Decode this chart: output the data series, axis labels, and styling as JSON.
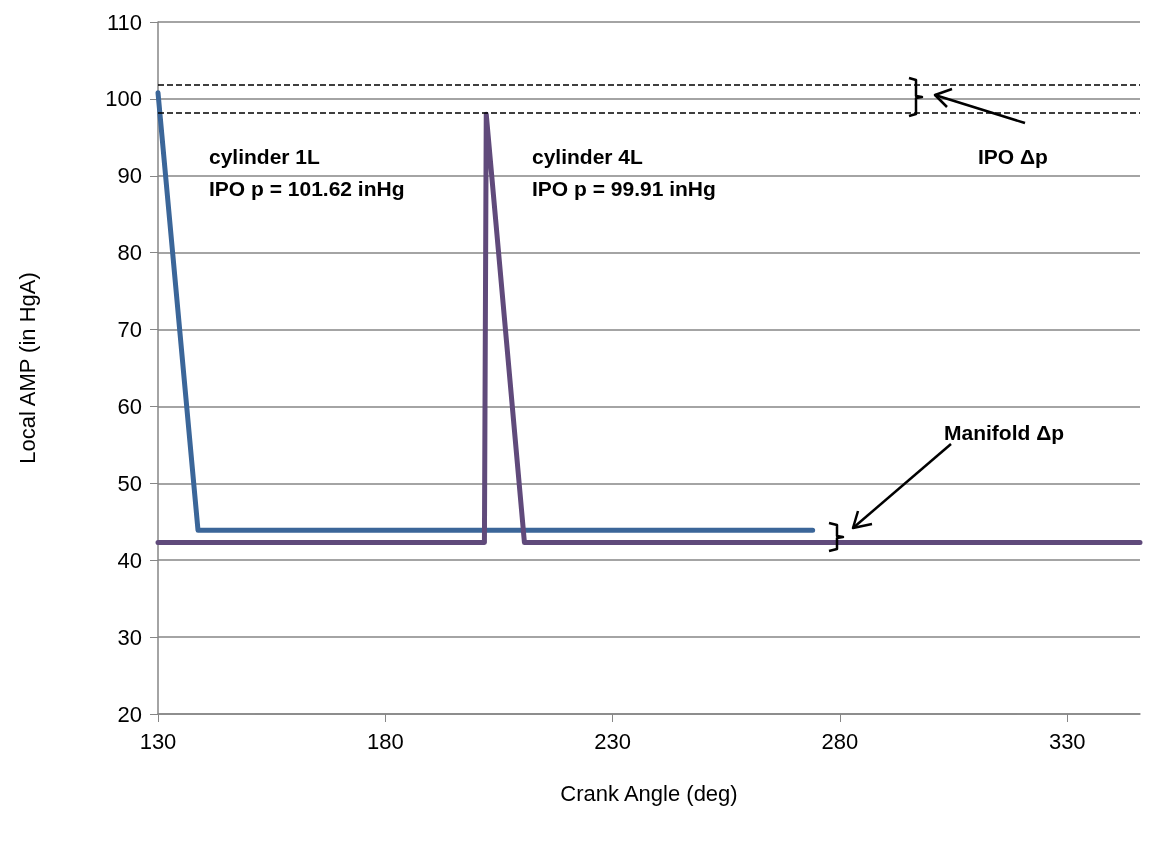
{
  "chart_data": {
    "type": "line",
    "xlabel": "Crank Angle (deg)",
    "ylabel": "Local AMP (in HgA)",
    "xlim": [
      130,
      346
    ],
    "xticks": [
      130,
      180,
      230,
      280,
      330
    ],
    "ylim": [
      20,
      110
    ],
    "yticks": [
      20,
      30,
      40,
      50,
      60,
      70,
      80,
      90,
      100,
      110
    ],
    "grid": "y",
    "marker": "none",
    "line_style": "solid",
    "series": [
      {
        "color": "#3b6699",
        "x": [
          130,
          138.8,
          274
        ],
        "values": [
          100.8,
          43.9,
          43.9
        ]
      },
      {
        "color": "#604a7b",
        "x": [
          130,
          201.8,
          202.2,
          210.6,
          346
        ],
        "values": [
          42.3,
          42.3,
          98.0,
          42.3,
          42.3
        ]
      }
    ],
    "ref_lines": [
      {
        "axis": "y",
        "value": 101.8,
        "color": "#000000",
        "line_style": "dashed"
      },
      {
        "axis": "y",
        "value": 98.2,
        "color": "#000000",
        "line_style": "dashed"
      }
    ],
    "annotations": [
      "cylinder 1L",
      "IPO p = 101.62 inHg",
      "cylinder 4L",
      "IPO p = 99.91 inHg",
      "IPO Δp",
      "Manifold Δp"
    ]
  }
}
